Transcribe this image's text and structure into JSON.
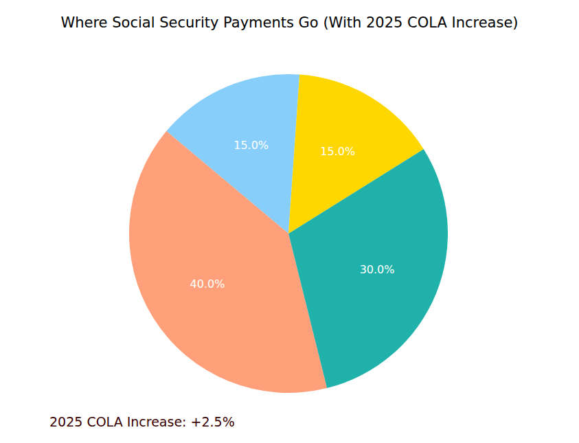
{
  "chart_data": {
    "type": "pie",
    "title": "Where Social Security Payments Go (With 2025 COLA Increase)",
    "values": [
      15,
      40,
      30,
      15
    ],
    "value_labels": [
      "15.0%",
      "40.0%",
      "30.0%",
      "15.0%"
    ],
    "colors": [
      "#87cefa",
      "#ffa07a",
      "#20b2aa",
      "#ffd700"
    ],
    "data_labels": true,
    "annotations": [
      "2025 COLA Increase: +2.5%"
    ]
  }
}
